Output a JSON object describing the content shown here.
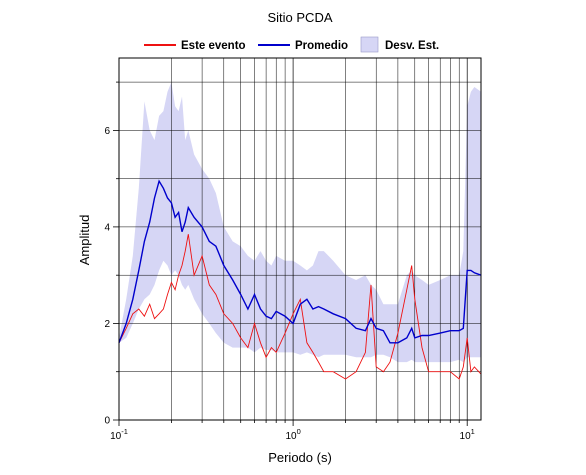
{
  "chart_data": {
    "type": "line",
    "title": "Sitio PCDA",
    "xlabel": "Periodo (s)",
    "ylabel": "Amplitud",
    "x_scale": "log",
    "xlim": [
      0.1,
      12
    ],
    "ylim": [
      0,
      7.5
    ],
    "grid": true,
    "legend_position": "top",
    "x_ticks": [
      {
        "base": "10",
        "exp": "-1"
      },
      {
        "base": "10",
        "exp": "0"
      },
      {
        "base": "10",
        "exp": "1"
      }
    ],
    "y_ticks": [
      "0",
      "2",
      "4",
      "6"
    ],
    "y_tick_values": [
      0,
      2,
      4,
      6
    ],
    "legend": [
      {
        "label": "Este evento",
        "kind": "line",
        "color": "#ee1111"
      },
      {
        "label": "Promedio",
        "kind": "line",
        "color": "#0000cc"
      },
      {
        "label": "Desv. Est.",
        "kind": "band",
        "color": "#d6d6f5"
      }
    ],
    "x": [
      0.1,
      0.11,
      0.12,
      0.13,
      0.14,
      0.15,
      0.16,
      0.17,
      0.18,
      0.19,
      0.2,
      0.21,
      0.22,
      0.23,
      0.24,
      0.25,
      0.27,
      0.3,
      0.33,
      0.36,
      0.4,
      0.45,
      0.5,
      0.55,
      0.6,
      0.65,
      0.7,
      0.75,
      0.8,
      0.9,
      1.0,
      1.1,
      1.2,
      1.3,
      1.4,
      1.5,
      1.7,
      2.0,
      2.3,
      2.6,
      2.8,
      3.0,
      3.3,
      3.6,
      4.0,
      4.5,
      4.8,
      5.0,
      5.5,
      6.0,
      7.0,
      8.0,
      9.0,
      9.5,
      10.0,
      10.5,
      11.0,
      12.0
    ],
    "series": [
      {
        "name": "Promedio",
        "color": "#0000cc",
        "values": [
          1.6,
          2.0,
          2.5,
          3.1,
          3.7,
          4.1,
          4.6,
          4.95,
          4.8,
          4.6,
          4.5,
          4.2,
          4.3,
          3.9,
          4.1,
          4.4,
          4.2,
          4.0,
          3.7,
          3.6,
          3.2,
          2.9,
          2.6,
          2.3,
          2.6,
          2.3,
          2.15,
          2.1,
          2.25,
          2.15,
          2.0,
          2.4,
          2.5,
          2.3,
          2.35,
          2.3,
          2.2,
          2.1,
          1.9,
          1.85,
          2.1,
          1.9,
          1.85,
          1.6,
          1.6,
          1.7,
          1.9,
          1.7,
          1.75,
          1.75,
          1.8,
          1.85,
          1.85,
          1.9,
          3.1,
          3.1,
          3.05,
          3.0
        ]
      },
      {
        "name": "Este evento",
        "color": "#ee1111",
        "values": [
          1.6,
          1.9,
          2.2,
          2.3,
          2.15,
          2.4,
          2.1,
          2.2,
          2.3,
          2.6,
          2.85,
          2.7,
          3.0,
          3.2,
          3.5,
          3.85,
          3.0,
          3.4,
          2.8,
          2.6,
          2.2,
          2.0,
          1.7,
          1.5,
          2.0,
          1.6,
          1.3,
          1.5,
          1.4,
          1.8,
          2.2,
          2.5,
          1.6,
          1.4,
          1.2,
          1.0,
          1.0,
          0.85,
          1.0,
          1.4,
          2.8,
          1.1,
          1.0,
          1.2,
          1.8,
          2.7,
          3.2,
          2.5,
          1.5,
          1.0,
          1.0,
          1.0,
          0.85,
          1.1,
          1.7,
          1.0,
          1.1,
          0.95
        ]
      }
    ],
    "band": {
      "name": "Desv. Est.",
      "upper": [
        1.7,
        2.5,
        3.4,
        4.8,
        6.6,
        6.0,
        5.8,
        6.3,
        6.4,
        6.8,
        7.0,
        6.5,
        6.4,
        6.7,
        5.8,
        6.0,
        5.5,
        5.2,
        5.0,
        4.7,
        4.0,
        3.7,
        3.6,
        3.4,
        3.3,
        3.5,
        3.3,
        3.2,
        3.4,
        3.3,
        3.3,
        3.2,
        3.1,
        3.2,
        3.5,
        3.5,
        3.3,
        3.0,
        2.9,
        3.0,
        2.8,
        2.7,
        2.4,
        2.4,
        2.4,
        3.0,
        3.1,
        3.0,
        2.9,
        2.8,
        2.9,
        3.0,
        3.0,
        3.5,
        6.5,
        6.8,
        6.9,
        6.8
      ],
      "lower": [
        1.6,
        1.7,
        2.0,
        2.3,
        2.5,
        2.6,
        2.8,
        3.1,
        3.3,
        3.2,
        3.0,
        3.1,
        3.0,
        2.8,
        2.7,
        2.8,
        2.5,
        2.2,
        2.0,
        1.8,
        1.6,
        1.5,
        1.5,
        1.5,
        1.4,
        1.5,
        1.45,
        1.45,
        1.4,
        1.4,
        1.4,
        1.35,
        1.4,
        1.35,
        1.3,
        1.35,
        1.35,
        1.35,
        1.3,
        1.3,
        1.3,
        1.35,
        1.35,
        1.3,
        1.2,
        1.2,
        1.25,
        1.2,
        1.2,
        1.2,
        1.2,
        1.2,
        1.25,
        1.2,
        1.3,
        1.3,
        1.3,
        1.3
      ]
    }
  }
}
